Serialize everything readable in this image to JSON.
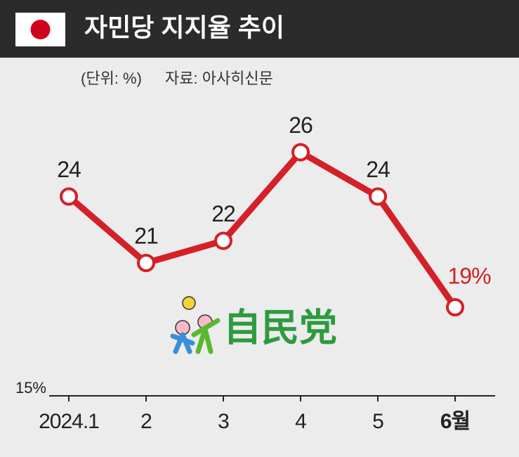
{
  "chart_data": {
    "type": "line",
    "title": "자민당 지지율 추이",
    "unit_note": "(단위: %)",
    "source": "자료: 아사히신문",
    "logo_text": "自民党",
    "categories": [
      "2024.1",
      "2",
      "3",
      "4",
      "5",
      "6월"
    ],
    "values": [
      24,
      21,
      22,
      26,
      24,
      19
    ],
    "value_labels": [
      "24",
      "21",
      "22",
      "26",
      "24",
      "19%"
    ],
    "color": "#d42027",
    "ylim": [
      15,
      30
    ],
    "yticks": [
      {
        "value": 15,
        "label": "15%"
      }
    ],
    "grid": false
  }
}
